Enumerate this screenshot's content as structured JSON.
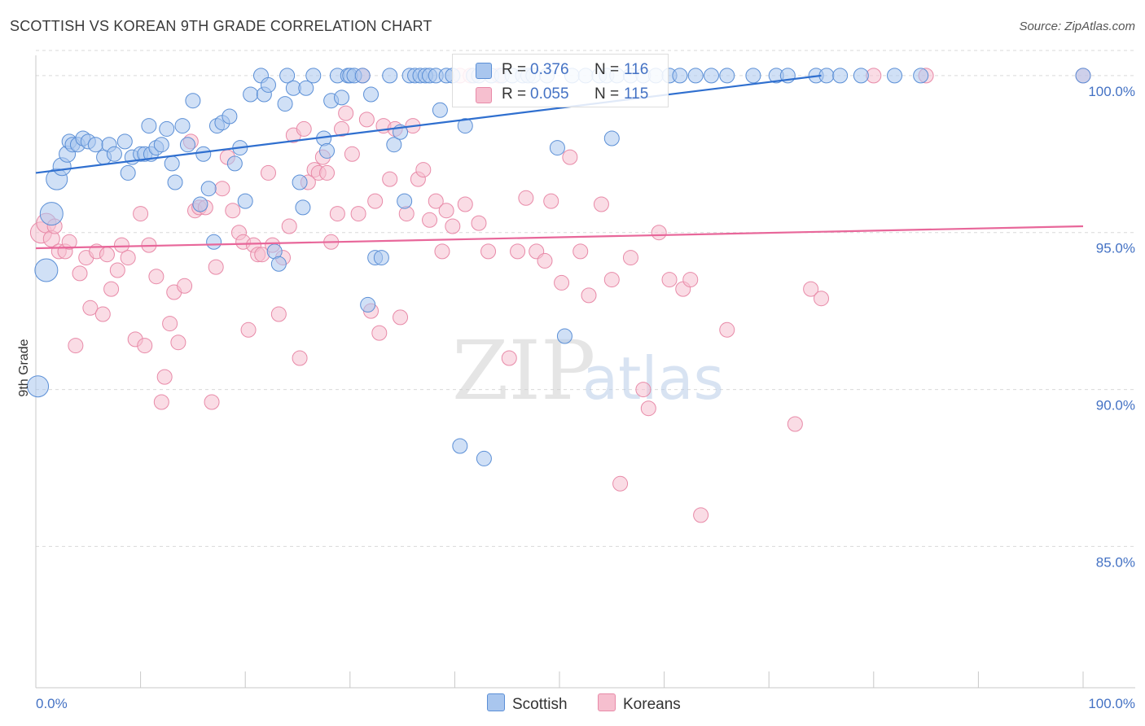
{
  "header": {
    "title": "SCOTTISH VS KOREAN 9TH GRADE CORRELATION CHART",
    "source": "Source: ZipAtlas.com"
  },
  "legend": {
    "scottish": {
      "r_label": "R =",
      "r_value": "0.376",
      "n_label": "N =",
      "n_value": "116"
    },
    "koreans": {
      "r_label": "R =",
      "r_value": "0.055",
      "n_label": "N =",
      "n_value": "115"
    }
  },
  "bottom_legend": {
    "scottish": "Scottish",
    "koreans": "Koreans"
  },
  "watermark": {
    "zip": "ZIP",
    "atlas": "atlas"
  },
  "colors": {
    "scottish_fill": "#a9c6ee",
    "scottish_stroke": "#5b8fd6",
    "scottish_line": "#2f6fcf",
    "koreans_fill": "#f6bfcf",
    "koreans_stroke": "#e88aa8",
    "koreans_line": "#e8679a",
    "tick_label": "#4472c4",
    "grid": "#d9d9d9"
  },
  "chart_data": {
    "type": "scatter",
    "title": "SCOTTISH VS KOREAN 9TH GRADE CORRELATION CHART",
    "xlabel": "",
    "ylabel": "9th Grade",
    "xlim": [
      0,
      100
    ],
    "ylim": [
      80.5,
      100.8
    ],
    "x_tick_labels": [
      "0.0%",
      "100.0%"
    ],
    "y_ticks": [
      85,
      90,
      95,
      100
    ],
    "y_tick_labels": [
      "85.0%",
      "90.0%",
      "95.0%",
      "100.0%"
    ],
    "grid": "horizontal dashed",
    "legend_position": "top-center",
    "series": [
      {
        "name": "Scottish",
        "trend": {
          "x": [
            0,
            75
          ],
          "y": [
            96.9,
            100.0
          ]
        },
        "points": [
          [
            0.2,
            90.1,
            13
          ],
          [
            1.0,
            93.8,
            14
          ],
          [
            1.5,
            95.6,
            14
          ],
          [
            2.0,
            96.7,
            13
          ],
          [
            2.5,
            97.1,
            11
          ],
          [
            3.0,
            97.5,
            10
          ],
          [
            3.2,
            97.9,
            9
          ],
          [
            3.5,
            97.8,
            9
          ],
          [
            4.0,
            97.8,
            9
          ],
          [
            4.5,
            98.0,
            9
          ],
          [
            5.0,
            97.9,
            9
          ],
          [
            5.7,
            97.8,
            9
          ],
          [
            6.5,
            97.4,
            9
          ],
          [
            7.0,
            97.8,
            9
          ],
          [
            7.5,
            97.5,
            9
          ],
          [
            8.5,
            97.9,
            9
          ],
          [
            8.8,
            96.9,
            9
          ],
          [
            9.2,
            97.4,
            9
          ],
          [
            10.0,
            97.5,
            9
          ],
          [
            10.4,
            97.5,
            9
          ],
          [
            10.8,
            98.4,
            9
          ],
          [
            11.0,
            97.5,
            9
          ],
          [
            11.5,
            97.7,
            9
          ],
          [
            12.0,
            97.8,
            9
          ],
          [
            12.5,
            98.3,
            9
          ],
          [
            13.0,
            97.2,
            9
          ],
          [
            13.3,
            96.6,
            9
          ],
          [
            14.0,
            98.4,
            9
          ],
          [
            14.5,
            97.8,
            9
          ],
          [
            15.0,
            99.2,
            9
          ],
          [
            15.7,
            95.9,
            9
          ],
          [
            16.0,
            97.5,
            9
          ],
          [
            16.5,
            96.4,
            9
          ],
          [
            17.0,
            94.7,
            9
          ],
          [
            17.3,
            98.4,
            9
          ],
          [
            17.8,
            98.5,
            9
          ],
          [
            18.5,
            98.7,
            9
          ],
          [
            19.0,
            97.2,
            9
          ],
          [
            19.5,
            97.7,
            9
          ],
          [
            20.0,
            96.0,
            9
          ],
          [
            20.5,
            99.4,
            9
          ],
          [
            21.5,
            100.0,
            9
          ],
          [
            21.8,
            99.4,
            9
          ],
          [
            22.2,
            99.7,
            9
          ],
          [
            22.8,
            94.4,
            9
          ],
          [
            23.2,
            94.0,
            9
          ],
          [
            23.8,
            99.1,
            9
          ],
          [
            24.0,
            100.0,
            9
          ],
          [
            24.6,
            99.6,
            9
          ],
          [
            25.2,
            96.6,
            9
          ],
          [
            25.5,
            95.8,
            9
          ],
          [
            25.8,
            99.6,
            9
          ],
          [
            26.5,
            100.0,
            9
          ],
          [
            27.5,
            98.0,
            9
          ],
          [
            27.8,
            97.6,
            9
          ],
          [
            28.2,
            99.2,
            9
          ],
          [
            28.8,
            100.0,
            9
          ],
          [
            29.2,
            99.3,
            9
          ],
          [
            29.8,
            100.0,
            9
          ],
          [
            30.0,
            100.0,
            9
          ],
          [
            30.4,
            100.0,
            9
          ],
          [
            31.2,
            100.0,
            9
          ],
          [
            31.7,
            92.7,
            9
          ],
          [
            32.0,
            99.4,
            9
          ],
          [
            32.4,
            94.2,
            9
          ],
          [
            33.0,
            94.2,
            9
          ],
          [
            33.8,
            100.0,
            9
          ],
          [
            34.2,
            97.8,
            9
          ],
          [
            34.8,
            98.2,
            9
          ],
          [
            35.2,
            96.0,
            9
          ],
          [
            35.7,
            100.0,
            9
          ],
          [
            36.2,
            100.0,
            9
          ],
          [
            36.7,
            100.0,
            9
          ],
          [
            37.2,
            100.0,
            9
          ],
          [
            37.6,
            100.0,
            9
          ],
          [
            38.2,
            100.0,
            9
          ],
          [
            38.6,
            98.9,
            9
          ],
          [
            39.2,
            100.0,
            9
          ],
          [
            39.8,
            100.0,
            9
          ],
          [
            40.5,
            88.2,
            9
          ],
          [
            41.0,
            98.4,
            9
          ],
          [
            41.8,
            100.0,
            9
          ],
          [
            42.3,
            100.0,
            9
          ],
          [
            42.8,
            87.8,
            9
          ],
          [
            43.5,
            100.0,
            9
          ],
          [
            44.5,
            100.0,
            9
          ],
          [
            45.5,
            100.0,
            9
          ],
          [
            46.5,
            100.0,
            9
          ],
          [
            47.0,
            100.0,
            9
          ],
          [
            47.5,
            100.0,
            9
          ],
          [
            48.8,
            100.0,
            9
          ],
          [
            49.8,
            97.7,
            9
          ],
          [
            50.5,
            91.7,
            9
          ],
          [
            51.2,
            100.0,
            9
          ],
          [
            52.5,
            100.0,
            9
          ],
          [
            53.8,
            100.0,
            9
          ],
          [
            54.5,
            100.0,
            9
          ],
          [
            55.0,
            98.0,
            9
          ],
          [
            55.5,
            100.0,
            9
          ],
          [
            56.8,
            100.0,
            9
          ],
          [
            58.0,
            100.0,
            9
          ],
          [
            59.2,
            100.0,
            9
          ],
          [
            60.5,
            100.0,
            9
          ],
          [
            61.5,
            100.0,
            9
          ],
          [
            63.0,
            100.0,
            9
          ],
          [
            64.5,
            100.0,
            9
          ],
          [
            66.0,
            100.0,
            9
          ],
          [
            68.5,
            100.0,
            9
          ],
          [
            70.7,
            100.0,
            9
          ],
          [
            71.8,
            100.0,
            9
          ],
          [
            74.5,
            100.0,
            9
          ],
          [
            75.5,
            100.0,
            9
          ],
          [
            76.8,
            100.0,
            9
          ],
          [
            78.8,
            100.0,
            9
          ],
          [
            82.0,
            100.0,
            9
          ],
          [
            84.5,
            100.0,
            9
          ],
          [
            100.0,
            100.0,
            9
          ]
        ]
      },
      {
        "name": "Koreans",
        "trend": {
          "x": [
            0,
            100
          ],
          "y": [
            94.5,
            95.2
          ]
        },
        "points": [
          [
            0.5,
            95.0,
            13
          ],
          [
            1.0,
            95.3,
            12
          ],
          [
            1.5,
            94.8,
            10
          ],
          [
            1.8,
            95.2,
            9
          ],
          [
            2.2,
            94.4,
            9
          ],
          [
            2.8,
            94.4,
            9
          ],
          [
            3.2,
            94.7,
            9
          ],
          [
            3.8,
            91.4,
            9
          ],
          [
            4.2,
            93.7,
            9
          ],
          [
            4.8,
            94.2,
            9
          ],
          [
            5.2,
            92.6,
            9
          ],
          [
            5.8,
            94.4,
            9
          ],
          [
            6.4,
            92.4,
            9
          ],
          [
            6.8,
            94.3,
            9
          ],
          [
            7.2,
            93.2,
            9
          ],
          [
            7.8,
            93.8,
            9
          ],
          [
            8.2,
            94.6,
            9
          ],
          [
            8.8,
            94.2,
            9
          ],
          [
            9.5,
            91.6,
            9
          ],
          [
            10.0,
            95.6,
            9
          ],
          [
            10.4,
            91.4,
            9
          ],
          [
            10.8,
            94.6,
            9
          ],
          [
            11.5,
            93.6,
            9
          ],
          [
            12.0,
            89.6,
            9
          ],
          [
            12.3,
            90.4,
            9
          ],
          [
            12.8,
            92.1,
            9
          ],
          [
            13.2,
            93.1,
            9
          ],
          [
            13.6,
            91.5,
            9
          ],
          [
            14.2,
            93.3,
            9
          ],
          [
            14.8,
            97.9,
            9
          ],
          [
            15.2,
            95.7,
            9
          ],
          [
            15.6,
            95.8,
            9
          ],
          [
            16.2,
            95.8,
            9
          ],
          [
            16.8,
            89.6,
            9
          ],
          [
            17.2,
            93.9,
            9
          ],
          [
            17.8,
            96.4,
            9
          ],
          [
            18.3,
            97.4,
            9
          ],
          [
            18.8,
            95.7,
            9
          ],
          [
            19.4,
            95.0,
            9
          ],
          [
            19.8,
            94.7,
            9
          ],
          [
            20.3,
            91.9,
            9
          ],
          [
            20.8,
            94.6,
            9
          ],
          [
            21.2,
            94.3,
            9
          ],
          [
            21.6,
            94.3,
            9
          ],
          [
            22.2,
            96.9,
            9
          ],
          [
            22.6,
            94.6,
            9
          ],
          [
            23.2,
            92.4,
            9
          ],
          [
            23.6,
            94.2,
            9
          ],
          [
            24.2,
            95.2,
            9
          ],
          [
            24.6,
            98.1,
            9
          ],
          [
            25.2,
            91.0,
            9
          ],
          [
            25.6,
            98.3,
            9
          ],
          [
            26.0,
            96.6,
            9
          ],
          [
            26.6,
            97.0,
            9
          ],
          [
            27.0,
            96.9,
            9
          ],
          [
            27.4,
            97.4,
            9
          ],
          [
            27.8,
            96.9,
            9
          ],
          [
            28.2,
            94.7,
            9
          ],
          [
            28.8,
            95.6,
            9
          ],
          [
            29.2,
            98.3,
            9
          ],
          [
            29.6,
            98.8,
            9
          ],
          [
            30.2,
            97.5,
            9
          ],
          [
            30.8,
            95.6,
            9
          ],
          [
            31.2,
            100.0,
            9
          ],
          [
            31.6,
            98.6,
            9
          ],
          [
            32.0,
            92.5,
            9
          ],
          [
            32.4,
            96.0,
            9
          ],
          [
            32.8,
            91.8,
            9
          ],
          [
            33.2,
            98.4,
            9
          ],
          [
            33.8,
            96.7,
            9
          ],
          [
            34.3,
            98.3,
            9
          ],
          [
            34.8,
            92.3,
            9
          ],
          [
            35.4,
            95.6,
            9
          ],
          [
            36.0,
            98.4,
            9
          ],
          [
            36.5,
            96.7,
            9
          ],
          [
            37.0,
            97.0,
            9
          ],
          [
            37.6,
            95.4,
            9
          ],
          [
            38.2,
            96.0,
            9
          ],
          [
            38.8,
            94.4,
            9
          ],
          [
            39.2,
            95.7,
            9
          ],
          [
            39.8,
            95.2,
            9
          ],
          [
            40.5,
            100.0,
            9
          ],
          [
            41.0,
            95.9,
            9
          ],
          [
            41.5,
            100.0,
            9
          ],
          [
            42.3,
            95.3,
            9
          ],
          [
            43.2,
            94.4,
            9
          ],
          [
            44.2,
            100.0,
            9
          ],
          [
            45.2,
            91.0,
            9
          ],
          [
            46.0,
            94.4,
            9
          ],
          [
            46.8,
            96.1,
            9
          ],
          [
            47.8,
            94.4,
            9
          ],
          [
            48.6,
            94.1,
            9
          ],
          [
            49.2,
            96.0,
            9
          ],
          [
            50.2,
            93.4,
            9
          ],
          [
            51.0,
            97.4,
            9
          ],
          [
            52.0,
            94.4,
            9
          ],
          [
            52.8,
            93.0,
            9
          ],
          [
            54.0,
            95.9,
            9
          ],
          [
            55.0,
            93.5,
            9
          ],
          [
            55.8,
            87.0,
            9
          ],
          [
            56.8,
            94.2,
            9
          ],
          [
            58.0,
            90.0,
            9
          ],
          [
            58.5,
            89.4,
            9
          ],
          [
            59.5,
            95.0,
            9
          ],
          [
            60.5,
            93.5,
            9
          ],
          [
            61.8,
            93.2,
            9
          ],
          [
            62.5,
            93.5,
            9
          ],
          [
            63.5,
            86.0,
            9
          ],
          [
            66.0,
            91.9,
            9
          ],
          [
            74.0,
            93.2,
            9
          ],
          [
            75.0,
            92.9,
            9
          ],
          [
            80.0,
            100.0,
            9
          ],
          [
            85.0,
            100.0,
            9
          ],
          [
            100.0,
            100.0,
            9
          ],
          [
            72.5,
            88.9,
            9
          ]
        ]
      }
    ]
  }
}
